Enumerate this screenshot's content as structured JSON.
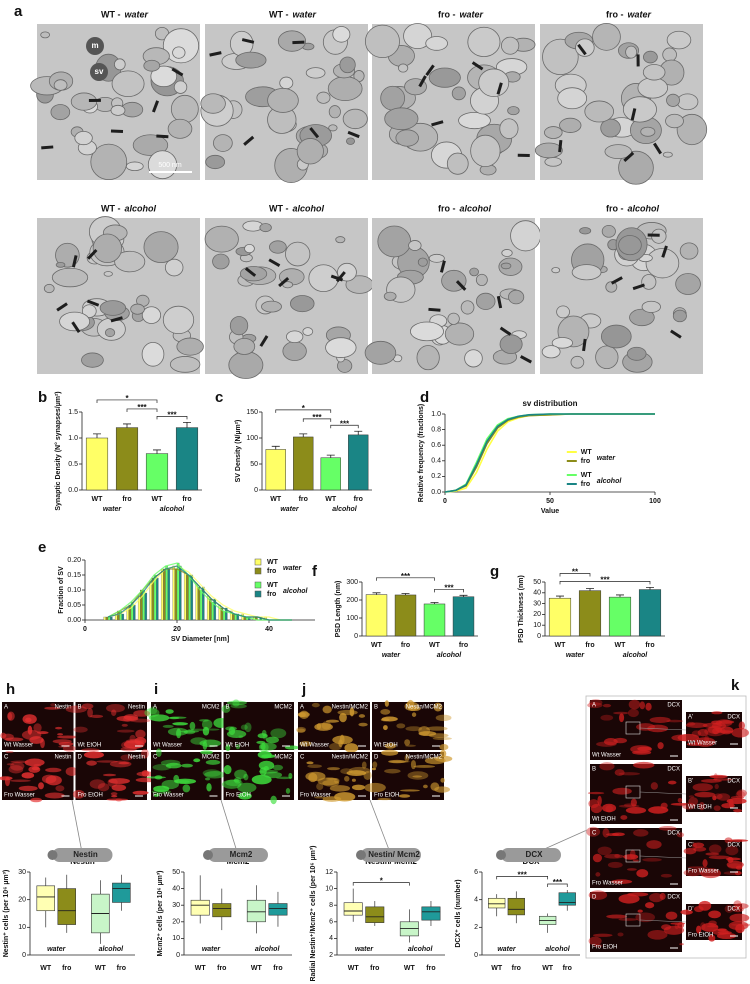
{
  "treatment_colors": {
    "water": "#3535d0",
    "alcohol": "#e02424"
  },
  "micrographs": {
    "panel": "a",
    "images": [
      {
        "genotype": "WT -",
        "treatment": "water"
      },
      {
        "genotype": "WT -",
        "treatment": "water"
      },
      {
        "genotype": "fro -",
        "treatment": "water"
      },
      {
        "genotype": "fro -",
        "treatment": "water"
      },
      {
        "genotype": "WT -",
        "treatment": "alcohol"
      },
      {
        "genotype": "WT -",
        "treatment": "alcohol"
      },
      {
        "genotype": "fro -",
        "treatment": "alcohol"
      },
      {
        "genotype": "fro -",
        "treatment": "alcohol"
      }
    ],
    "labels": [
      "m",
      "sv"
    ],
    "scale_bar": "500 nm"
  },
  "chart_data": [
    {
      "type": "bar",
      "panel": "b",
      "ylabel": "Synaptic Density (N° synapses/µm²)",
      "categories": [
        "WT",
        "fro",
        "WT",
        "fro"
      ],
      "groups": [
        "water",
        "alcohol"
      ],
      "values": [
        1.0,
        1.2,
        0.7,
        1.2
      ],
      "errors": [
        0.08,
        0.07,
        0.07,
        0.1
      ],
      "colors": [
        "#ffff66",
        "#8c8c1a",
        "#66ff66",
        "#1a8585"
      ],
      "ylim": [
        0,
        1.5
      ],
      "yticks": [
        {
          "value": 0,
          "label": "0.0"
        },
        0.5,
        {
          "value": 1,
          "label": "1.0"
        },
        1.5
      ],
      "significance": [
        {
          "from": 0,
          "to": 2,
          "label": "*"
        },
        {
          "from": 1,
          "to": 2,
          "label": "***"
        },
        {
          "from": 2,
          "to": 3,
          "label": "***"
        }
      ]
    },
    {
      "type": "bar",
      "panel": "c",
      "ylabel": "SV Density (N/µm²)",
      "categories": [
        "WT",
        "fro",
        "WT",
        "fro"
      ],
      "groups": [
        "water",
        "alcohol"
      ],
      "values": [
        78,
        102,
        62,
        106
      ],
      "errors": [
        6,
        6,
        5,
        7
      ],
      "colors": [
        "#ffff66",
        "#8c8c1a",
        "#66ff66",
        "#1a8585"
      ],
      "ylim": [
        0,
        150
      ],
      "yticks": [
        0,
        50,
        100,
        150
      ],
      "significance": [
        {
          "from": 0,
          "to": 2,
          "label": "*"
        },
        {
          "from": 1,
          "to": 2,
          "label": "***"
        },
        {
          "from": 2,
          "to": 3,
          "label": "***"
        }
      ]
    },
    {
      "type": "line",
      "panel": "d",
      "title": "sv distribution",
      "xlabel": "Value",
      "ylabel": "Relative frequency (fractions)",
      "x": [
        0,
        5,
        10,
        15,
        20,
        25,
        30,
        35,
        40,
        50,
        60,
        100
      ],
      "series": [
        {
          "name": "WT",
          "color": "#ffff44",
          "values": [
            0,
            0.01,
            0.05,
            0.25,
            0.55,
            0.78,
            0.9,
            0.95,
            0.98,
            0.99,
            1,
            1
          ]
        },
        {
          "name": "fro",
          "color": "#8c8c1a",
          "values": [
            0,
            0.02,
            0.08,
            0.32,
            0.62,
            0.82,
            0.92,
            0.96,
            0.98,
            0.99,
            1,
            1
          ]
        },
        {
          "name": "WT",
          "color": "#66ff66",
          "values": [
            0,
            0.02,
            0.1,
            0.38,
            0.68,
            0.86,
            0.94,
            0.97,
            0.99,
            1,
            1,
            1
          ]
        },
        {
          "name": "fro",
          "color": "#1a8585",
          "values": [
            0,
            0.02,
            0.09,
            0.35,
            0.65,
            0.84,
            0.93,
            0.97,
            0.99,
            1,
            1,
            1
          ]
        }
      ],
      "legend_groups": [
        "water",
        "alcohol"
      ],
      "xlim": [
        0,
        100
      ],
      "xticks": [
        0,
        50,
        100
      ],
      "ylim": [
        0,
        1
      ],
      "yticks": [
        {
          "value": 0,
          "label": "0.0"
        },
        0.2,
        0.4,
        0.6,
        0.8,
        {
          "value": 1,
          "label": "1.0"
        }
      ]
    },
    {
      "type": "column",
      "panel": "e",
      "xlabel": "SV Diameter [nm]",
      "ylabel": "Fraction of SV",
      "x": [
        5,
        7.5,
        10,
        12.5,
        15,
        17.5,
        20,
        22.5,
        25,
        27.5,
        30,
        32.5,
        35,
        37.5,
        40,
        42.5,
        45
      ],
      "series": [
        {
          "name": "WT",
          "color": "#ffff66",
          "values": [
            0.01,
            0.02,
            0.04,
            0.08,
            0.13,
            0.17,
            0.18,
            0.16,
            0.12,
            0.08,
            0.05,
            0.03,
            0.02,
            0.01,
            0.01,
            0,
            0
          ]
        },
        {
          "name": "fro",
          "color": "#8c8c1a",
          "values": [
            0.01,
            0.03,
            0.05,
            0.1,
            0.14,
            0.17,
            0.17,
            0.15,
            0.11,
            0.07,
            0.04,
            0.02,
            0.01,
            0.01,
            0,
            0,
            0
          ]
        },
        {
          "name": "WT",
          "color": "#66ff66",
          "values": [
            0.01,
            0.03,
            0.06,
            0.1,
            0.15,
            0.18,
            0.19,
            0.15,
            0.1,
            0.06,
            0.03,
            0.02,
            0.01,
            0,
            0,
            0,
            0
          ]
        },
        {
          "name": "fro",
          "color": "#1a8585",
          "values": [
            0.01,
            0.02,
            0.05,
            0.09,
            0.14,
            0.17,
            0.18,
            0.15,
            0.11,
            0.07,
            0.04,
            0.02,
            0.01,
            0.01,
            0,
            0,
            0
          ]
        }
      ],
      "legend_groups": [
        "water",
        "alcohol"
      ],
      "xlim": [
        0,
        50
      ],
      "xticks": [
        0,
        20,
        40
      ],
      "ylim": [
        0,
        0.2
      ],
      "yticks": [
        {
          "value": 0,
          "label": "0.00"
        },
        0.05,
        {
          "value": 0.1,
          "label": "0.10"
        },
        0.15,
        {
          "value": 0.2,
          "label": "0.20"
        }
      ]
    },
    {
      "type": "bar",
      "panel": "f",
      "ylabel": "PSD Length (nm)",
      "categories": [
        "WT",
        "fro",
        "WT",
        "fro"
      ],
      "groups": [
        "water",
        "alcohol"
      ],
      "values": [
        230,
        228,
        178,
        218
      ],
      "errors": [
        10,
        8,
        8,
        8
      ],
      "colors": [
        "#ffff66",
        "#8c8c1a",
        "#66ff66",
        "#1a8585"
      ],
      "ylim": [
        0,
        300
      ],
      "yticks": [
        0,
        100,
        200,
        300
      ],
      "significance": [
        {
          "from": 0,
          "to": 2,
          "label": "***"
        },
        {
          "from": 2,
          "to": 3,
          "label": "***"
        }
      ]
    },
    {
      "type": "bar",
      "panel": "g",
      "ylabel": "PSD Thickness (nm)",
      "categories": [
        "WT",
        "fro",
        "WT",
        "fro"
      ],
      "groups": [
        "water",
        "alcohol"
      ],
      "values": [
        35,
        42,
        36,
        43
      ],
      "errors": [
        2,
        2,
        2,
        2
      ],
      "colors": [
        "#ffff66",
        "#8c8c1a",
        "#66ff66",
        "#1a8585"
      ],
      "ylim": [
        0,
        50
      ],
      "yticks": [
        0,
        10,
        20,
        30,
        40,
        50
      ],
      "significance": [
        {
          "from": 0,
          "to": 1,
          "label": "**"
        },
        {
          "from": 0,
          "to": 3,
          "label": "***"
        }
      ]
    },
    {
      "type": "box",
      "title": "Nestin",
      "ylabel": "Nestin⁺ cells (per 10⁶ µm³)",
      "categories": [
        "WT",
        "fro",
        "WT",
        "fro"
      ],
      "groups": [
        "water",
        "alcohol"
      ],
      "values": [
        [
          10,
          16,
          21,
          25,
          28
        ],
        [
          8,
          11,
          16,
          24,
          29
        ],
        [
          4,
          8,
          15,
          22,
          27
        ],
        [
          16,
          19,
          24,
          26,
          29
        ]
      ],
      "colors": [
        "#ffffb3",
        "#8c8c1a",
        "#c8f5c8",
        "#1f9a9a"
      ],
      "ylim": [
        0,
        30
      ],
      "yticks": [
        0,
        10,
        20,
        30
      ],
      "significance": []
    },
    {
      "type": "box",
      "title": "Mcm2",
      "ylabel": "Mcm2⁺ cells (per 10⁶ µm³)",
      "categories": [
        "WT",
        "fro",
        "WT",
        "fro"
      ],
      "groups": [
        "water",
        "alcohol"
      ],
      "values": [
        [
          19,
          24,
          30,
          33,
          48
        ],
        [
          15,
          23,
          28,
          31,
          40
        ],
        [
          13,
          20,
          26,
          33,
          42
        ],
        [
          17,
          24,
          28,
          31,
          38
        ]
      ],
      "colors": [
        "#ffffb3",
        "#8c8c1a",
        "#c8f5c8",
        "#1f9a9a"
      ],
      "ylim": [
        0,
        50
      ],
      "yticks": [
        0,
        10,
        20,
        30,
        40,
        50
      ],
      "significance": []
    },
    {
      "type": "box",
      "title": "Nestin/ Mcm2",
      "ylabel": "Radial Nestin⁺/Mcm2⁺ cells (per 10⁶ µm³)",
      "categories": [
        "WT",
        "fro",
        "WT",
        "fro"
      ],
      "groups": [
        "water",
        "alcohol"
      ],
      "values": [
        [
          6,
          6.8,
          7.3,
          8.3,
          10
        ],
        [
          5.5,
          5.9,
          6.6,
          7.8,
          8.5
        ],
        [
          3.5,
          4.3,
          5.2,
          6,
          7.5
        ],
        [
          5.5,
          6.2,
          7.2,
          7.8,
          8.5
        ]
      ],
      "colors": [
        "#ffffb3",
        "#8c8c1a",
        "#c8f5c8",
        "#1f9a9a"
      ],
      "ylim": [
        2,
        12
      ],
      "yticks": [
        2,
        4,
        6,
        8,
        10,
        12
      ],
      "significance": [
        {
          "from": 0,
          "to": 2,
          "label": "*"
        }
      ]
    },
    {
      "type": "box",
      "title": "DCX",
      "ylabel": "DCX⁺ cells (number)",
      "categories": [
        "WT",
        "fro",
        "WT",
        "fro"
      ],
      "groups": [
        "water",
        "alcohol"
      ],
      "values": [
        [
          2.8,
          3.4,
          3.7,
          4.1,
          4.4
        ],
        [
          2.3,
          2.9,
          3.3,
          4.1,
          4.6
        ],
        [
          1.6,
          2.2,
          2.5,
          2.8,
          3.0
        ],
        [
          3.2,
          3.6,
          3.8,
          4.5,
          4.7
        ]
      ],
      "colors": [
        "#ffffb3",
        "#8c8c1a",
        "#c8f5c8",
        "#1f9a9a"
      ],
      "ylim": [
        0,
        6
      ],
      "yticks": [
        0,
        2,
        4,
        6
      ],
      "significance": [
        {
          "from": 0,
          "to": 2,
          "label": "***"
        },
        {
          "from": 2,
          "to": 3,
          "label": "***"
        }
      ]
    }
  ],
  "fluorescence": [
    {
      "panel": "h",
      "color": "#e53030",
      "images": [
        {
          "corner": "A",
          "marker": "Nestin",
          "caption": "Wt Wasser"
        },
        {
          "corner": "B",
          "marker": "Nestin",
          "caption": "Wt EtOH"
        },
        {
          "corner": "C",
          "marker": "Nestin",
          "caption": "Fro Wasser"
        },
        {
          "corner": "D",
          "marker": "Nestin",
          "caption": "Fro EtOH"
        }
      ]
    },
    {
      "panel": "i",
      "color": "#3ee03e",
      "images": [
        {
          "corner": "A",
          "marker": "MCM2",
          "caption": "Wt Wasser"
        },
        {
          "corner": "B",
          "marker": "MCM2",
          "caption": "Wt EtOH"
        },
        {
          "corner": "C",
          "marker": "MCM2",
          "caption": "Fro Wasser"
        },
        {
          "corner": "D",
          "marker": "MCM2",
          "caption": "Fro EtOH"
        }
      ]
    },
    {
      "panel": "j",
      "color": "#d09a30",
      "images": [
        {
          "corner": "A",
          "marker": "Nestin/MCM2",
          "caption": "Wt Wasser"
        },
        {
          "corner": "B",
          "marker": "Nestin/MCM2",
          "caption": "Wt EtOH"
        },
        {
          "corner": "C",
          "marker": "Nestin/MCM2",
          "caption": "Fro Wasser"
        },
        {
          "corner": "D",
          "marker": "Nestin/MCM2",
          "caption": "Fro EtOH"
        }
      ]
    },
    {
      "panel": "k",
      "color": "#d02020",
      "images": [
        {
          "corner": "A",
          "marker": "DCX",
          "caption": "Wt Wasser"
        },
        {
          "corner": "B",
          "marker": "DCX",
          "caption": "Wt EtOH"
        },
        {
          "corner": "C",
          "marker": "DCX",
          "caption": "Fro Wasser"
        },
        {
          "corner": "D",
          "marker": "DCX",
          "caption": "Fro EtOH"
        }
      ],
      "details": [
        {
          "corner": "A'",
          "marker": "DCX",
          "caption": "Wt Wasser"
        },
        {
          "corner": "B'",
          "marker": "DCX",
          "caption": "Wt EtOH"
        },
        {
          "corner": "C'",
          "marker": "DCX",
          "caption": "Fro Wasser"
        },
        {
          "corner": "D'",
          "marker": "DCX",
          "caption": "Fro EtOH"
        }
      ]
    }
  ]
}
